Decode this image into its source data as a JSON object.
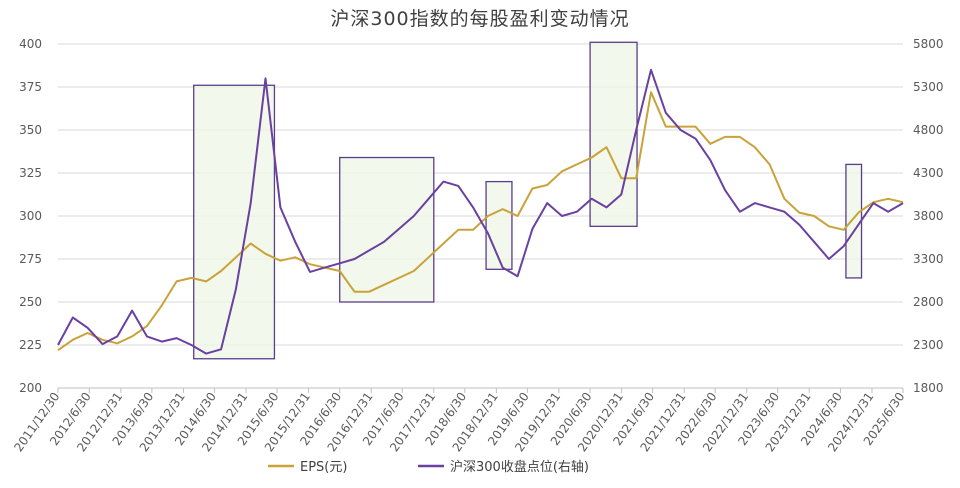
{
  "chart_data": {
    "type": "line",
    "title": "沪深300指数的每股盈利变动情况",
    "xlabel": "",
    "ylabel": "",
    "x_tick_labels": [
      "2011/12/30",
      "2012/6/30",
      "2012/12/31",
      "2013/6/30",
      "2013/12/31",
      "2014/6/30",
      "2014/12/31",
      "2015/6/30",
      "2015/12/31",
      "2016/6/30",
      "2016/12/31",
      "2017/6/30",
      "2017/12/31",
      "2018/6/30",
      "2018/12/31",
      "2019/6/30",
      "2019/12/31",
      "2020/6/30",
      "2020/12/31",
      "2021/6/30",
      "2021/12/31",
      "2022/6/30",
      "2022/12/31",
      "2023/6/30",
      "2023/12/31",
      "2024/6/30",
      "2024/12/31",
      "2025/6/30"
    ],
    "ylim_left": [
      200,
      400
    ],
    "y_ticks_left": [
      200,
      225,
      250,
      275,
      300,
      325,
      350,
      375,
      400
    ],
    "ylim_right": [
      1800,
      5800
    ],
    "y_ticks_right": [
      1800,
      2300,
      2800,
      3300,
      3800,
      4300,
      4800,
      5300,
      5800
    ],
    "grid": true,
    "legend_position": "bottom",
    "series": [
      {
        "name": "EPS(元)",
        "axis": "left",
        "color": "#C9A23A",
        "values": [
          222,
          228,
          232,
          228,
          226,
          230,
          236,
          248,
          262,
          264,
          262,
          268,
          276,
          284,
          278,
          274,
          276,
          272,
          270,
          268,
          256,
          256,
          260,
          264,
          268,
          276,
          284,
          292,
          292,
          300,
          304,
          300,
          316,
          318,
          326,
          330,
          334,
          340,
          322,
          322,
          372,
          352,
          352,
          352,
          342,
          346,
          346,
          340,
          330,
          310,
          302,
          300,
          294,
          292,
          302,
          308,
          310,
          308
        ]
      },
      {
        "name": "沪深300收盘点位(右轴)",
        "axis": "right",
        "color": "#6A40A0",
        "values": [
          2300,
          2620,
          2500,
          2310,
          2400,
          2700,
          2400,
          2340,
          2380,
          2300,
          2200,
          2250,
          2950,
          3950,
          5400,
          3900,
          3500,
          3150,
          3200,
          3250,
          3300,
          3400,
          3500,
          3650,
          3800,
          4000,
          4200,
          4150,
          3900,
          3600,
          3200,
          3100,
          3650,
          3950,
          3800,
          3850,
          4000,
          3900,
          4050,
          4800,
          5500,
          5000,
          4800,
          4700,
          4450,
          4100,
          3850,
          3950,
          3900,
          3850,
          3700,
          3500,
          3300,
          3450,
          3700,
          3950,
          3850,
          3950
        ]
      }
    ],
    "highlight_boxes": [
      {
        "x_range": [
          "2014/3/1",
          "2015/6/15"
        ],
        "y_range_left": [
          217,
          376
        ]
      },
      {
        "x_range": [
          "2016/6/30",
          "2017/12/31"
        ],
        "y_range_left": [
          250,
          334
        ]
      },
      {
        "x_range": [
          "2018/11/1",
          "2019/4/1"
        ],
        "y_range_left": [
          269,
          320
        ]
      },
      {
        "x_range": [
          "2020/6/30",
          "2021/3/31"
        ],
        "y_range_left": [
          294,
          401
        ]
      },
      {
        "x_range": [
          "2024/8/1",
          "2024/10/31"
        ],
        "y_range_left": [
          264,
          330
        ]
      }
    ]
  }
}
